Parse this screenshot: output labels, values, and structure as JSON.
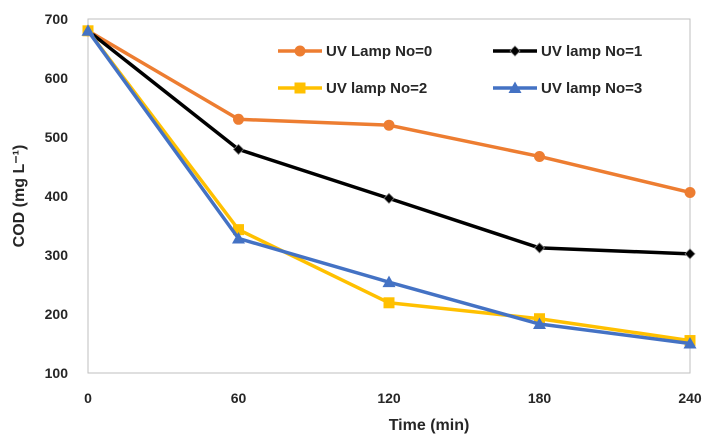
{
  "chart_data": {
    "type": "line",
    "x": [
      0,
      60,
      120,
      180,
      240
    ],
    "xlabel": "Time (min)",
    "ylabel": "COD (mg L⁻¹)",
    "xlim": [
      0,
      240
    ],
    "ylim": [
      100,
      700
    ],
    "x_ticks": [
      "0",
      "60",
      "120",
      "180",
      "240"
    ],
    "y_ticks": [
      "100",
      "200",
      "300",
      "400",
      "500",
      "600",
      "700"
    ],
    "grid": false,
    "legend": "top-right",
    "series": [
      {
        "name": "UV Lamp No=0",
        "color": "#ed7d31",
        "marker": "circle",
        "values": [
          680,
          530,
          520,
          467,
          406
        ]
      },
      {
        "name": "UV lamp No=1",
        "color": "#000000",
        "marker": "diamond",
        "values": [
          680,
          479,
          396,
          312,
          302
        ]
      },
      {
        "name": "UV lamp No=2",
        "color": "#ffc000",
        "marker": "square",
        "values": [
          680,
          343,
          219,
          192,
          155
        ]
      },
      {
        "name": "UV lamp No=3",
        "color": "#4472c4",
        "marker": "triangle",
        "values": [
          680,
          328,
          254,
          183,
          150
        ]
      }
    ]
  }
}
